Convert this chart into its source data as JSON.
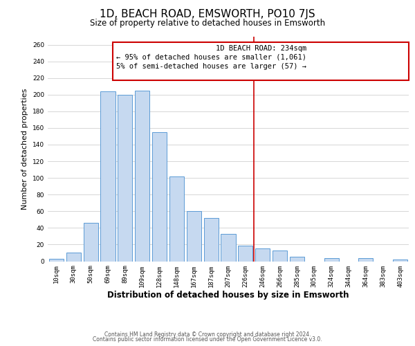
{
  "title": "1D, BEACH ROAD, EMSWORTH, PO10 7JS",
  "subtitle": "Size of property relative to detached houses in Emsworth",
  "xlabel": "Distribution of detached houses by size in Emsworth",
  "ylabel": "Number of detached properties",
  "bar_labels": [
    "10sqm",
    "30sqm",
    "50sqm",
    "69sqm",
    "89sqm",
    "109sqm",
    "128sqm",
    "148sqm",
    "167sqm",
    "187sqm",
    "207sqm",
    "226sqm",
    "246sqm",
    "266sqm",
    "285sqm",
    "305sqm",
    "324sqm",
    "344sqm",
    "364sqm",
    "383sqm",
    "403sqm"
  ],
  "bar_values": [
    3,
    10,
    46,
    204,
    200,
    205,
    155,
    102,
    60,
    52,
    33,
    19,
    15,
    13,
    5,
    0,
    4,
    0,
    4,
    0,
    2
  ],
  "bar_color": "#c6d9f0",
  "bar_edge_color": "#5b9bd5",
  "ylim": [
    0,
    270
  ],
  "yticks": [
    0,
    20,
    40,
    60,
    80,
    100,
    120,
    140,
    160,
    180,
    200,
    220,
    240,
    260
  ],
  "vline_x": 11.5,
  "vline_color": "#cc0000",
  "annotation_title": "1D BEACH ROAD: 234sqm",
  "annotation_line1": "← 95% of detached houses are smaller (1,061)",
  "annotation_line2": "5% of semi-detached houses are larger (57) →",
  "footer1": "Contains HM Land Registry data © Crown copyright and database right 2024.",
  "footer2": "Contains public sector information licensed under the Open Government Licence v3.0.",
  "background_color": "#ffffff",
  "grid_color": "#d0d0d0",
  "title_fontsize": 11,
  "subtitle_fontsize": 8.5,
  "axis_label_fontsize": 8,
  "tick_fontsize": 6.5,
  "annotation_fontsize": 7.5,
  "footer_fontsize": 5.5
}
